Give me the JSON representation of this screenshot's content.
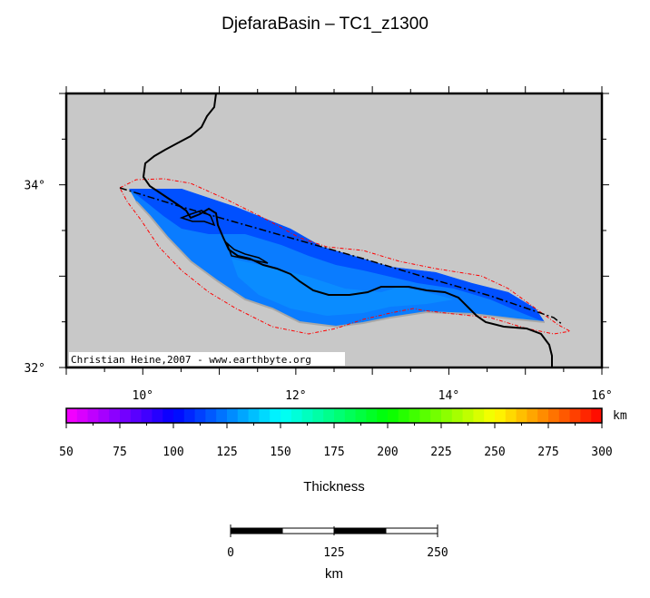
{
  "title": "DjefaraBasin – TC1_z1300",
  "map": {
    "lon_range": [
      9,
      16
    ],
    "lat_range": [
      32,
      35
    ],
    "x_ticks": [
      {
        "value": 10,
        "label": "10°"
      },
      {
        "value": 12,
        "label": "12°"
      },
      {
        "value": 14,
        "label": "14°"
      },
      {
        "value": 16,
        "label": "16°"
      }
    ],
    "y_ticks": [
      {
        "value": 32,
        "label": "32°"
      },
      {
        "value": 34,
        "label": "34°"
      }
    ],
    "credit": "Christian Heine,2007 - www.earthbyte.org",
    "land_color": "#c8c8c8",
    "basin_colors": {
      "deep": "#0a78ff",
      "mid": "#0050ff",
      "shallow": "#0064ff"
    },
    "outline_color": "#ff0000"
  },
  "colorbar": {
    "unit": "km",
    "min": 50,
    "max": 300,
    "ticks": [
      "50",
      "75",
      "100",
      "125",
      "150",
      "175",
      "200",
      "225",
      "250",
      "275",
      "300"
    ],
    "label": "Thickness"
  },
  "scalebar": {
    "ticks": [
      "0",
      "125",
      "250"
    ],
    "unit": "km"
  }
}
